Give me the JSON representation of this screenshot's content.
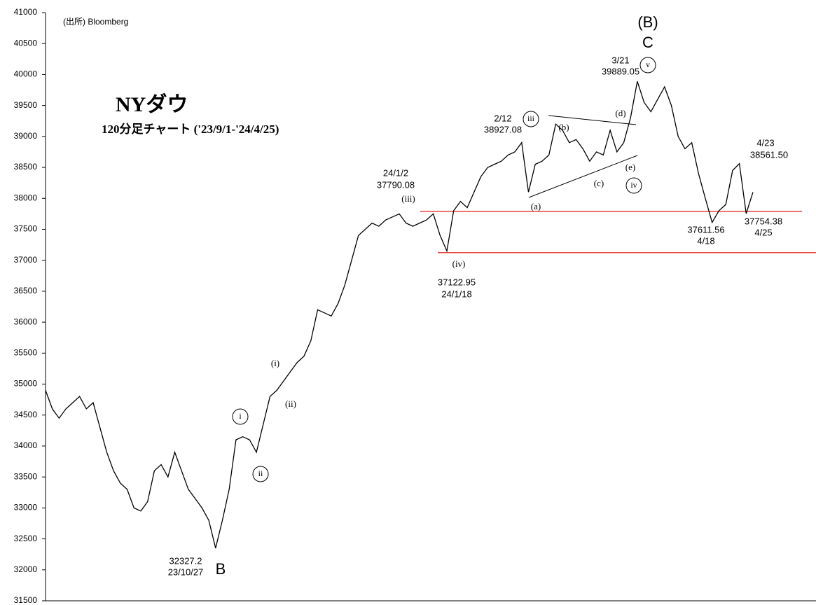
{
  "chart_data": {
    "type": "line",
    "title": "NYダウ",
    "subtitle": "120分足チャート ('23/9/1-'24/4/25)",
    "source": "(出所) Bloomberg",
    "ylim": [
      31500,
      41000
    ],
    "yticks": [
      31500,
      32000,
      32500,
      33000,
      33500,
      34000,
      34500,
      35000,
      35500,
      36000,
      36500,
      37000,
      37500,
      38000,
      38500,
      39000,
      39500,
      40000,
      40500,
      41000
    ],
    "series": [
      {
        "color": "#000000",
        "values": [
          34900,
          34600,
          34450,
          34600,
          34700,
          34800,
          34600,
          34700,
          34300,
          33900,
          33600,
          33400,
          33300,
          33000,
          32950,
          33100,
          33600,
          33700,
          33500,
          33900,
          33600,
          33300,
          33150,
          33000,
          32800,
          32350,
          32800,
          33300,
          34100,
          34150,
          34100,
          33900,
          34350,
          34800,
          34900,
          35050,
          35200,
          35350,
          35450,
          35700,
          36200,
          36150,
          36100,
          36300,
          36600,
          37000,
          37400,
          37500,
          37600,
          37550,
          37650,
          37700,
          37750,
          37600,
          37550,
          37600,
          37650,
          37750,
          37400,
          37150,
          37800,
          37950,
          37850,
          38100,
          38350,
          38500,
          38550,
          38600,
          38700,
          38750,
          38900,
          38100,
          38550,
          38600,
          38700,
          39200,
          39100,
          38900,
          38950,
          38800,
          38600,
          38750,
          38700,
          39100,
          38750,
          38900,
          39300,
          39889,
          39550,
          39400,
          39600,
          39800,
          39500,
          39000,
          38800,
          38900,
          38400,
          38000,
          37611,
          37800,
          37900,
          38450,
          38560,
          37754,
          38100
        ]
      }
    ],
    "reference_lines": [
      {
        "value": 37790.08,
        "color": "#e00000"
      },
      {
        "value": 37122.95,
        "color": "#e00000"
      }
    ],
    "annotations": [
      "(B)",
      "C",
      "3/21",
      "39889.05",
      "v",
      "2/12",
      "38927.08",
      "iii",
      "(b)",
      "(d)",
      "(e)",
      "(c)",
      "iv",
      "(a)",
      "24/1/2",
      "37790.08",
      "(iii)",
      "(iv)",
      "37122.95",
      "24/1/18",
      "4/23",
      "38561.50",
      "37611.56",
      "4/18",
      "37754.38",
      "4/25",
      "(i)",
      "(ii)",
      "i",
      "ii",
      "32327.2",
      "23/10/27",
      "B"
    ]
  }
}
